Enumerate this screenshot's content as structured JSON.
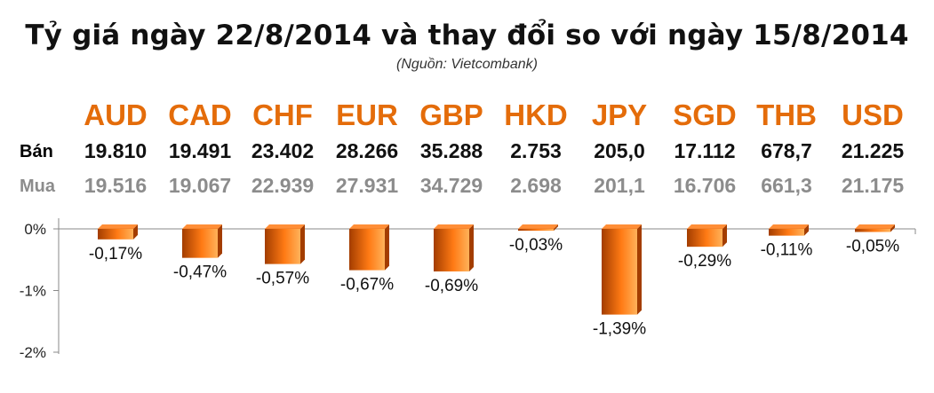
{
  "title": "Tỷ giá ngày 22/8/2014 và thay đổi so với ngày 15/8/2014",
  "subtitle": "(Nguồn: Vietcombank)",
  "rows": {
    "sell_label": "Bán",
    "buy_label": "Mua"
  },
  "colors": {
    "currency": "#e46c0a",
    "sell": "#111111",
    "buy": "#8c8c8c",
    "bar_dark": "#a33d00",
    "bar_mid": "#ff7a14",
    "bar_light": "#ffb25a",
    "axis": "#888888"
  },
  "chart_data": {
    "type": "bar",
    "categories": [
      "AUD",
      "CAD",
      "CHF",
      "EUR",
      "GBP",
      "HKD",
      "JPY",
      "SGD",
      "THB",
      "USD"
    ],
    "sell": [
      "19.810",
      "19.491",
      "23.402",
      "28.266",
      "35.288",
      "2.753",
      "205,0",
      "17.112",
      "678,7",
      "21.225"
    ],
    "buy": [
      "19.516",
      "19.067",
      "22.939",
      "27.931",
      "34.729",
      "2.698",
      "201,1",
      "16.706",
      "661,3",
      "21.175"
    ],
    "values": [
      -0.17,
      -0.47,
      -0.57,
      -0.67,
      -0.69,
      -0.03,
      -1.39,
      -0.29,
      -0.11,
      -0.05
    ],
    "data_labels": [
      "-0,17%",
      "-0,47%",
      "-0,57%",
      "-0,67%",
      "-0,69%",
      "-0,03%",
      "-1,39%",
      "-0,29%",
      "-0,11%",
      "-0,05%"
    ],
    "y_ticks": [
      0,
      -1,
      -2
    ],
    "y_tick_labels": [
      "0%",
      "-1%",
      "-2%"
    ],
    "ylim": [
      -2,
      0
    ],
    "grid": false,
    "legend": "none"
  }
}
